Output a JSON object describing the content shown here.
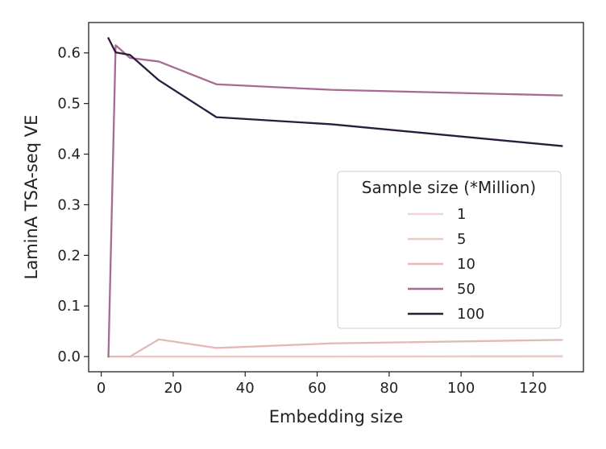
{
  "chart_data": {
    "type": "line",
    "title": "",
    "xlabel": "Embedding size",
    "ylabel": "LaminA TSA-seq VE",
    "xlim": [
      -3.5,
      134
    ],
    "ylim": [
      -0.03,
      0.66
    ],
    "xticks": [
      0,
      20,
      40,
      60,
      80,
      100,
      120
    ],
    "yticks": [
      0.0,
      0.1,
      0.2,
      0.3,
      0.4,
      0.5,
      0.6
    ],
    "x": [
      2,
      4,
      8,
      16,
      32,
      64,
      128
    ],
    "grid": false,
    "legend": {
      "title": "Sample size (*Million)",
      "placement": "center-right"
    },
    "series": [
      {
        "name": "1",
        "color": "#f0d6d2",
        "values": [
          0.0,
          0.0,
          0.0,
          0.0,
          0.0,
          0.0,
          0.0
        ]
      },
      {
        "name": "5",
        "color": "#ecc9c4",
        "values": [
          0.0,
          0.0,
          0.0,
          0.0,
          0.0,
          0.0,
          0.001
        ]
      },
      {
        "name": "10",
        "color": "#e3b9b8",
        "values": [
          0.0,
          0.0,
          0.0,
          0.034,
          0.017,
          0.026,
          0.033
        ]
      },
      {
        "name": "50",
        "color": "#a86b90",
        "values": [
          0.0,
          0.615,
          0.59,
          0.583,
          0.538,
          0.527,
          0.516
        ]
      },
      {
        "name": "100",
        "color": "#2b1c3d",
        "values": [
          0.629,
          0.601,
          0.596,
          0.546,
          0.473,
          0.459,
          0.416
        ]
      }
    ]
  }
}
